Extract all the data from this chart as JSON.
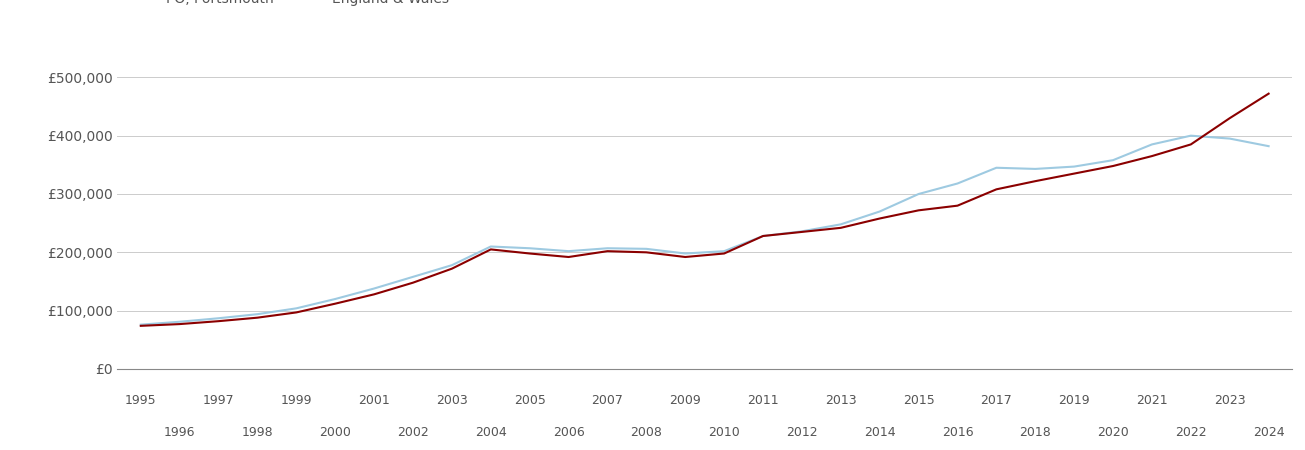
{
  "portsmouth_color": "#8B0000",
  "england_color": "#9ECAE1",
  "background_color": "#ffffff",
  "grid_color": "#cccccc",
  "ylim": [
    0,
    540000
  ],
  "yticks": [
    0,
    100000,
    200000,
    300000,
    400000,
    500000
  ],
  "ytick_labels": [
    "£0",
    "£100,000",
    "£200,000",
    "£300,000",
    "£400,000",
    "£500,000"
  ],
  "years": [
    1995,
    1996,
    1997,
    1998,
    1999,
    2000,
    2001,
    2002,
    2003,
    2004,
    2005,
    2006,
    2007,
    2008,
    2009,
    2010,
    2011,
    2012,
    2013,
    2014,
    2015,
    2016,
    2017,
    2018,
    2019,
    2020,
    2021,
    2022,
    2023,
    2024
  ],
  "portsmouth_values": [
    74000,
    77000,
    82000,
    88000,
    97000,
    112000,
    128000,
    148000,
    172000,
    205000,
    198000,
    192000,
    202000,
    200000,
    192000,
    198000,
    228000,
    235000,
    242000,
    258000,
    272000,
    280000,
    308000,
    322000,
    335000,
    348000,
    365000,
    385000,
    430000,
    472000
  ],
  "england_values": [
    76000,
    81000,
    87000,
    94000,
    104000,
    120000,
    138000,
    158000,
    178000,
    210000,
    207000,
    202000,
    207000,
    206000,
    198000,
    202000,
    228000,
    236000,
    248000,
    270000,
    300000,
    318000,
    345000,
    343000,
    347000,
    358000,
    385000,
    400000,
    395000,
    382000
  ],
  "xtick_odd": [
    1995,
    1997,
    1999,
    2001,
    2003,
    2005,
    2007,
    2009,
    2011,
    2013,
    2015,
    2017,
    2019,
    2021,
    2023
  ],
  "xtick_even": [
    1996,
    1998,
    2000,
    2002,
    2004,
    2006,
    2008,
    2010,
    2012,
    2014,
    2016,
    2018,
    2020,
    2022,
    2024
  ],
  "xlim_left": 1994.4,
  "xlim_right": 2024.6
}
